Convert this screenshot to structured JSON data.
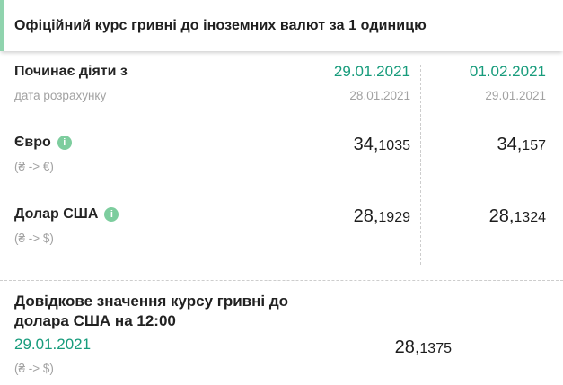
{
  "colors": {
    "green_text": "#189c7c",
    "info_icon_bg": "#7dcd9e",
    "accent_left_border": "#90d4ae",
    "muted_gray": "#a2a2a2",
    "dark_text": "#212121",
    "dashed_divider": "#cdcdcd"
  },
  "icons": {
    "info": "i"
  },
  "title_bar": {
    "title": "Офіційний курс гривні до іноземних валют за 1 одиницю"
  },
  "table": {
    "effective_label": "Починає діяти з",
    "calc_label": "дата розрахунку",
    "columns": [
      {
        "effective_date": "29.01.2021",
        "calc_date": "28.01.2021"
      },
      {
        "effective_date": "01.02.2021",
        "calc_date": "29.01.2021"
      }
    ],
    "rows": [
      {
        "name": "Євро",
        "pair": "(₴ -> €)",
        "values": [
          {
            "int": "34,",
            "frac": "1035"
          },
          {
            "int": "34,",
            "frac": "157"
          }
        ]
      },
      {
        "name": "Долар США",
        "pair": "(₴ -> $)",
        "values": [
          {
            "int": "28,",
            "frac": "1929"
          },
          {
            "int": "28,",
            "frac": "1324"
          }
        ]
      }
    ]
  },
  "reference": {
    "label": "Довідкове значення курсу гривні до долара США на 12:00",
    "date": "29.01.2021",
    "pair": "(₴ -> $)",
    "value": {
      "int": "28,",
      "frac": "1375"
    }
  }
}
